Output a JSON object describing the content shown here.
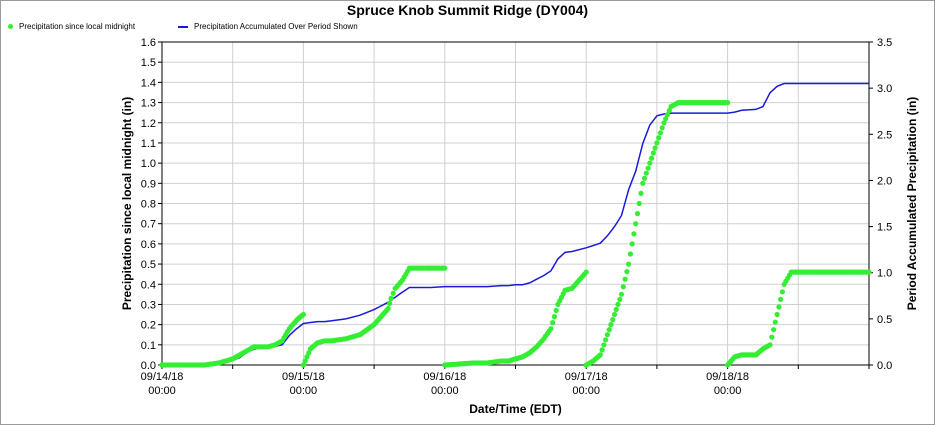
{
  "chart_data": {
    "type": "line",
    "title": "Spruce Knob Summit Ridge (DY004)",
    "xlabel": "Date/Time (EDT)",
    "ylabel_left": "Precipitation since local midnight (in)",
    "ylabel_right": "Period Accumulated Precipitation (in)",
    "ylim_left": [
      0,
      1.6
    ],
    "ylim_right": [
      0,
      3.5
    ],
    "xlim_days": [
      0,
      5.0
    ],
    "grid": true,
    "legend_placement": "top-left",
    "yticks_left": [
      "0.0",
      "0.1",
      "0.2",
      "0.3",
      "0.4",
      "0.5",
      "0.6",
      "0.7",
      "0.8",
      "0.9",
      "1.0",
      "1.1",
      "1.2",
      "1.3",
      "1.4",
      "1.5",
      "1.6"
    ],
    "yticks_right": [
      "0.0",
      "0.5",
      "1.0",
      "1.5",
      "2.0",
      "2.5",
      "3.0",
      "3.5"
    ],
    "xticks": [
      {
        "date": "09/14/18",
        "time": "00:00",
        "day": 0
      },
      {
        "date": "09/15/18",
        "time": "00:00",
        "day": 1
      },
      {
        "date": "09/16/18",
        "time": "00:00",
        "day": 2
      },
      {
        "date": "09/17/18",
        "time": "00:00",
        "day": 3
      },
      {
        "date": "09/18/18",
        "time": "00:00",
        "day": 4
      }
    ],
    "series": [
      {
        "name": "Precipitation since local midnight",
        "axis": "left",
        "color": "#33ee33",
        "style": "dots",
        "x_days": [
          0.0,
          0.2,
          0.3,
          0.4,
          0.45,
          0.5,
          0.55,
          0.6,
          0.65,
          0.7,
          0.75,
          0.8,
          0.85,
          0.9,
          0.95,
          0.98,
          1.0,
          1.0,
          1.05,
          1.1,
          1.15,
          1.2,
          1.3,
          1.4,
          1.5,
          1.6,
          1.62,
          1.65,
          1.7,
          1.75,
          1.8,
          1.85,
          1.88,
          1.9,
          1.95,
          2.0,
          2.0,
          2.2,
          2.3,
          2.4,
          2.45,
          2.5,
          2.55,
          2.6,
          2.65,
          2.7,
          2.75,
          2.8,
          2.85,
          2.9,
          2.95,
          3.0,
          3.0,
          3.05,
          3.1,
          3.15,
          3.2,
          3.25,
          3.3,
          3.35,
          3.4,
          3.45,
          3.5,
          3.55,
          3.6,
          3.65,
          3.7,
          3.75,
          3.8,
          3.85,
          3.9,
          3.95,
          4.0,
          4.0,
          4.05,
          4.1,
          4.2,
          4.25,
          4.3,
          4.35,
          4.4,
          4.45,
          4.5,
          4.6,
          4.7,
          4.8,
          4.9,
          5.0
        ],
        "y": [
          0.0,
          0.0,
          0.0,
          0.01,
          0.02,
          0.03,
          0.05,
          0.07,
          0.09,
          0.09,
          0.09,
          0.1,
          0.12,
          0.18,
          0.22,
          0.24,
          0.25,
          0.0,
          0.08,
          0.11,
          0.12,
          0.12,
          0.13,
          0.15,
          0.2,
          0.28,
          0.33,
          0.38,
          0.42,
          0.48,
          0.48,
          0.48,
          0.48,
          0.48,
          0.48,
          0.48,
          0.0,
          0.01,
          0.01,
          0.02,
          0.02,
          0.03,
          0.04,
          0.06,
          0.09,
          0.13,
          0.18,
          0.3,
          0.37,
          0.38,
          0.42,
          0.46,
          0.0,
          0.02,
          0.05,
          0.15,
          0.25,
          0.35,
          0.5,
          0.7,
          0.9,
          1.0,
          1.1,
          1.2,
          1.28,
          1.3,
          1.3,
          1.3,
          1.3,
          1.3,
          1.3,
          1.3,
          1.3,
          0.0,
          0.04,
          0.05,
          0.05,
          0.08,
          0.1,
          0.25,
          0.4,
          0.46,
          0.46,
          0.46,
          0.46,
          0.46,
          0.46,
          0.46
        ]
      },
      {
        "name": "Precipitation Accumulated Over Period Shown",
        "axis": "right",
        "color": "#1a1adf",
        "style": "line",
        "x_days": [
          0.0,
          0.2,
          0.3,
          0.4,
          0.45,
          0.5,
          0.55,
          0.6,
          0.65,
          0.7,
          0.75,
          0.8,
          0.85,
          0.9,
          0.95,
          1.0,
          1.05,
          1.1,
          1.15,
          1.2,
          1.3,
          1.4,
          1.5,
          1.6,
          1.7,
          1.75,
          1.8,
          1.85,
          1.9,
          2.0,
          2.2,
          2.3,
          2.4,
          2.45,
          2.5,
          2.55,
          2.6,
          2.65,
          2.7,
          2.75,
          2.8,
          2.85,
          2.9,
          3.0,
          3.1,
          3.15,
          3.2,
          3.25,
          3.3,
          3.35,
          3.4,
          3.45,
          3.5,
          3.55,
          3.6,
          3.7,
          3.8,
          3.9,
          4.0,
          4.05,
          4.1,
          4.2,
          4.25,
          4.3,
          4.35,
          4.4,
          4.5,
          4.7,
          5.0
        ],
        "y": [
          0.0,
          0.0,
          0.0,
          0.02,
          0.03,
          0.05,
          0.08,
          0.14,
          0.17,
          0.19,
          0.19,
          0.2,
          0.22,
          0.32,
          0.39,
          0.45,
          0.46,
          0.47,
          0.47,
          0.48,
          0.5,
          0.54,
          0.6,
          0.68,
          0.79,
          0.84,
          0.84,
          0.84,
          0.84,
          0.85,
          0.85,
          0.85,
          0.86,
          0.86,
          0.87,
          0.87,
          0.89,
          0.93,
          0.97,
          1.02,
          1.15,
          1.22,
          1.23,
          1.27,
          1.32,
          1.4,
          1.5,
          1.62,
          1.9,
          2.1,
          2.4,
          2.6,
          2.7,
          2.72,
          2.73,
          2.73,
          2.73,
          2.73,
          2.73,
          2.74,
          2.76,
          2.77,
          2.8,
          2.95,
          3.02,
          3.05,
          3.05,
          3.05,
          3.05
        ]
      }
    ]
  }
}
